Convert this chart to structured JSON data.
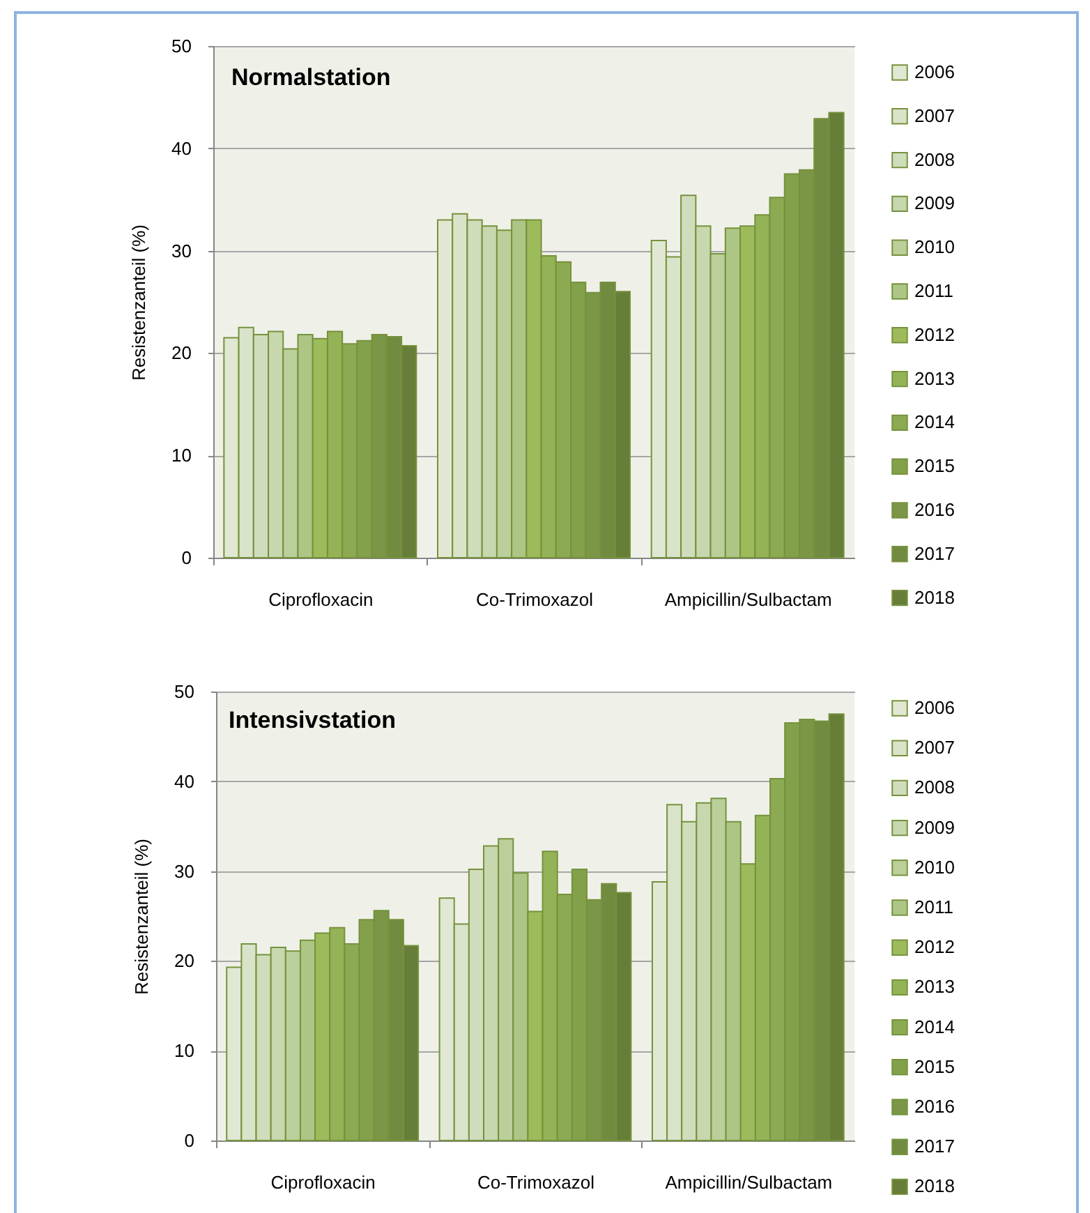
{
  "chart_data": [
    {
      "type": "bar",
      "title": "Normalstation",
      "ylabel": "Resistenzanteil (%)",
      "categories": [
        "Ciprofloxacin",
        "Co-Trimoxazol",
        "Ampicillin/Sulbactam"
      ],
      "series": [
        {
          "name": "2006",
          "color": "#e0e8d3",
          "values": [
            21.5,
            33.0,
            31.0
          ]
        },
        {
          "name": "2007",
          "color": "#d9e3ca",
          "values": [
            22.5,
            33.6,
            29.4
          ]
        },
        {
          "name": "2008",
          "color": "#d0ddbd",
          "values": [
            21.8,
            33.0,
            35.4
          ]
        },
        {
          "name": "2009",
          "color": "#c7d7ae",
          "values": [
            22.1,
            32.4,
            32.4
          ]
        },
        {
          "name": "2010",
          "color": "#bbcf9b",
          "values": [
            20.4,
            32.0,
            29.7
          ]
        },
        {
          "name": "2011",
          "color": "#adc685",
          "values": [
            21.8,
            33.0,
            32.2
          ]
        },
        {
          "name": "2012",
          "color": "#9dbb5b",
          "values": [
            21.4,
            33.0,
            32.4
          ]
        },
        {
          "name": "2013",
          "color": "#94b256",
          "values": [
            22.1,
            29.5,
            33.5
          ]
        },
        {
          "name": "2014",
          "color": "#8baa51",
          "values": [
            20.9,
            28.9,
            35.2
          ]
        },
        {
          "name": "2015",
          "color": "#83a04b",
          "values": [
            21.2,
            26.9,
            37.5
          ]
        },
        {
          "name": "2016",
          "color": "#7a9646",
          "values": [
            21.8,
            25.9,
            37.9
          ]
        },
        {
          "name": "2017",
          "color": "#718b40",
          "values": [
            21.6,
            26.9,
            42.9
          ]
        },
        {
          "name": "2018",
          "color": "#667e38",
          "values": [
            20.7,
            26.0,
            43.5
          ]
        }
      ],
      "ylim": [
        0,
        50
      ],
      "yticks": [
        0,
        10,
        20,
        30,
        40,
        50
      ],
      "grid": "y",
      "legend": "right"
    },
    {
      "type": "bar",
      "title": "Intensivstation",
      "ylabel": "Resistenzanteil (%)",
      "categories": [
        "Ciprofloxacin",
        "Co-Trimoxazol",
        "Ampicillin/Sulbactam"
      ],
      "series": [
        {
          "name": "2006",
          "color": "#e0e8d3",
          "values": [
            19.3,
            27.0,
            28.8
          ]
        },
        {
          "name": "2007",
          "color": "#d9e3ca",
          "values": [
            21.9,
            24.1,
            37.4
          ]
        },
        {
          "name": "2008",
          "color": "#d0ddbd",
          "values": [
            20.7,
            30.2,
            35.5
          ]
        },
        {
          "name": "2009",
          "color": "#c7d7ae",
          "values": [
            21.5,
            32.8,
            37.6
          ]
        },
        {
          "name": "2010",
          "color": "#bbcf9b",
          "values": [
            21.1,
            33.6,
            38.1
          ]
        },
        {
          "name": "2011",
          "color": "#adc685",
          "values": [
            22.3,
            29.8,
            35.5
          ]
        },
        {
          "name": "2012",
          "color": "#9dbb5b",
          "values": [
            23.1,
            25.5,
            30.8
          ]
        },
        {
          "name": "2013",
          "color": "#94b256",
          "values": [
            23.7,
            32.2,
            36.2
          ]
        },
        {
          "name": "2014",
          "color": "#8baa51",
          "values": [
            21.9,
            27.4,
            40.3
          ]
        },
        {
          "name": "2015",
          "color": "#83a04b",
          "values": [
            24.6,
            30.2,
            46.5
          ]
        },
        {
          "name": "2016",
          "color": "#7a9646",
          "values": [
            25.6,
            26.8,
            46.9
          ]
        },
        {
          "name": "2017",
          "color": "#718b40",
          "values": [
            24.6,
            28.6,
            46.7
          ]
        },
        {
          "name": "2018",
          "color": "#667e38",
          "values": [
            21.7,
            27.6,
            47.5
          ]
        }
      ],
      "ylim": [
        0,
        50
      ],
      "yticks": [
        0,
        10,
        20,
        30,
        40,
        50
      ],
      "grid": "y",
      "legend": "right"
    }
  ]
}
